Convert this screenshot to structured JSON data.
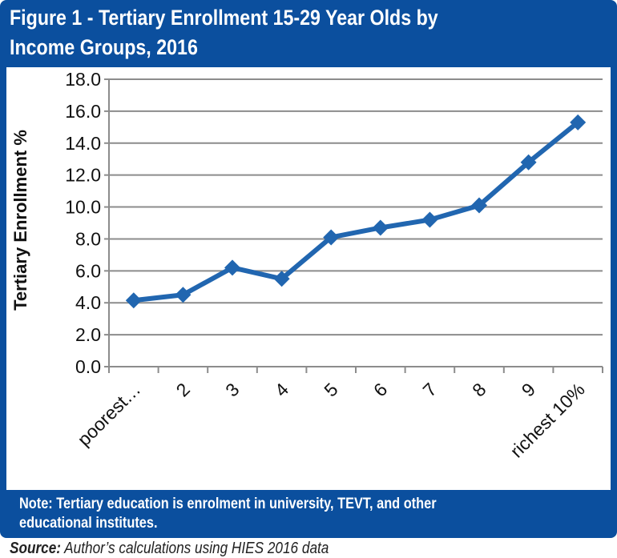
{
  "header": {
    "title_line1": "Figure 1 - Tertiary Enrollment 15-29 Year Olds by",
    "title_line2": "Income Groups, 2016"
  },
  "note": {
    "line1": "Note: Tertiary education is enrolment in university, TEVT, and other",
    "line2": "educational institutes."
  },
  "source": {
    "label": "Source:",
    "text": " Author’s calculations using HIES 2016 data"
  },
  "colors": {
    "frame": "#0b4f9e",
    "series": "#2166b0",
    "grid": "#8c8c8c"
  },
  "chart_data": {
    "type": "line",
    "title": "Figure 1 - Tertiary Enrollment 15-29 Year Olds by Income Groups, 2016",
    "xlabel": "",
    "ylabel": "Tertiary Enrollment %",
    "categories": [
      "poorest…",
      "2",
      "3",
      "4",
      "5",
      "6",
      "7",
      "8",
      "9",
      "richest 10%"
    ],
    "values": [
      4.15,
      4.5,
      6.2,
      5.5,
      8.1,
      8.7,
      9.2,
      10.1,
      12.8,
      15.3
    ],
    "ylim": [
      0,
      18
    ],
    "yticks": [
      "0.0",
      "2.0",
      "4.0",
      "6.0",
      "8.0",
      "10.0",
      "12.0",
      "14.0",
      "16.0",
      "18.0"
    ],
    "grid": true,
    "marker": "diamond",
    "legend": "none"
  }
}
